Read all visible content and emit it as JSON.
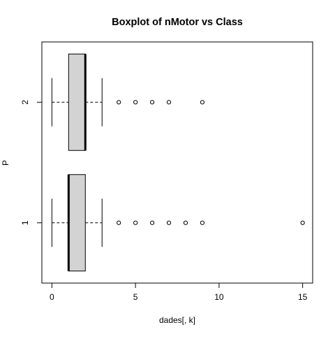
{
  "chart_data": {
    "type": "boxplot",
    "orientation": "horizontal",
    "title": "Boxplot of nMotor vs Class",
    "xlabel": "dades[, k]",
    "ylabel": "P",
    "xlim": [
      -0.6,
      15.6
    ],
    "x_ticks": [
      0,
      5,
      10,
      15
    ],
    "categories": [
      "1",
      "2"
    ],
    "box_fill": "#d3d3d3",
    "grid": false,
    "groups": [
      {
        "label": "1",
        "whisker_low": 0,
        "q1": 1,
        "median": 1,
        "q3": 2,
        "whisker_high": 3,
        "outliers": [
          4,
          5,
          6,
          7,
          8,
          9,
          15
        ]
      },
      {
        "label": "2",
        "whisker_low": 0,
        "q1": 1,
        "median": 2,
        "q3": 2,
        "whisker_high": 3,
        "outliers": [
          4,
          5,
          6,
          7,
          9
        ]
      }
    ]
  }
}
